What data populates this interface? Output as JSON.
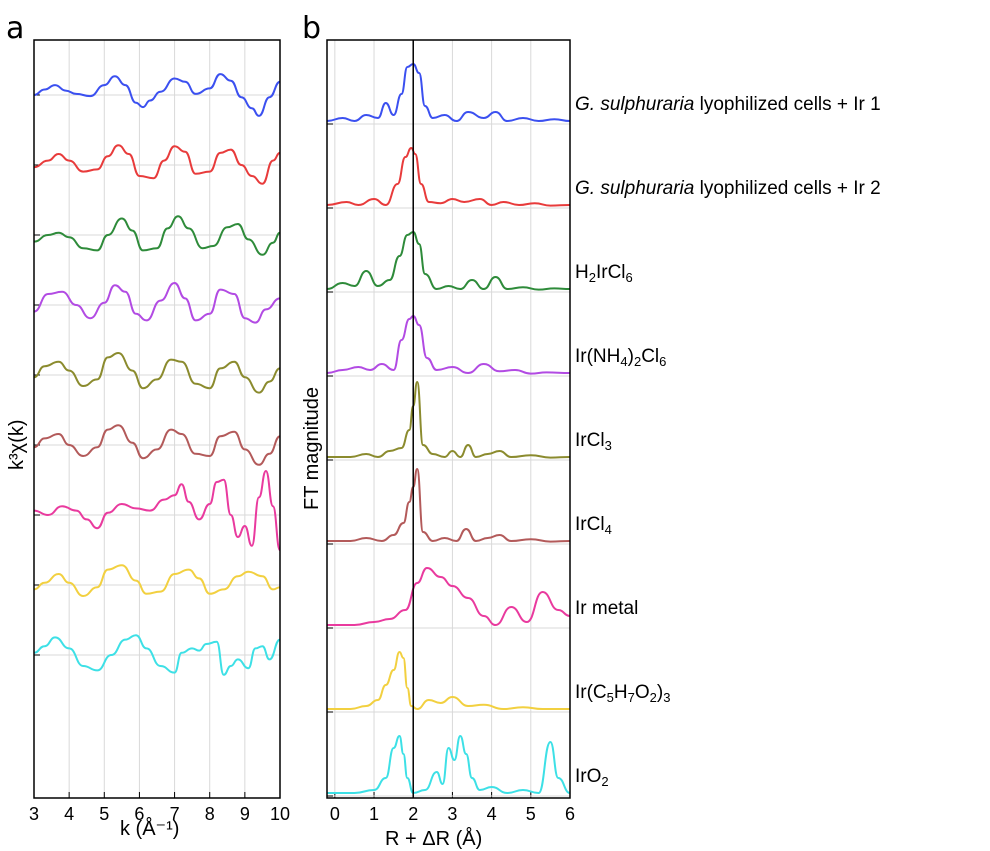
{
  "figure": {
    "panel_a_letter": "a",
    "panel_b_letter": "b",
    "panel_a_ylabel": "k³χ(k)",
    "panel_b_ylabel": "FT magnitude"
  },
  "chart_data": [
    {
      "type": "line",
      "panel": "a",
      "xlabel": "k  (Å⁻¹)",
      "ylabel": "k³χ(k)",
      "xlim": [
        3,
        10
      ],
      "xticks": [
        "3",
        "4",
        "5",
        "6",
        "7",
        "8",
        "9",
        "10"
      ],
      "grid": true,
      "stacked_offset": true,
      "series": [
        {
          "color": "#3b50f0",
          "x": [
            3.0,
            3.3,
            3.6,
            3.9,
            4.2,
            4.6,
            5.0,
            5.3,
            5.6,
            5.9,
            6.1,
            6.3,
            6.6,
            7.0,
            7.3,
            7.6,
            8.0,
            8.3,
            8.6,
            8.9,
            9.2,
            9.4,
            9.7,
            10.0
          ],
          "y": [
            0.0,
            0.25,
            0.45,
            0.2,
            0.05,
            -0.05,
            0.45,
            0.85,
            0.45,
            -0.35,
            -0.55,
            -0.25,
            0.15,
            0.75,
            0.6,
            0.05,
            0.3,
            0.95,
            0.65,
            -0.1,
            -0.6,
            -0.95,
            -0.1,
            0.6
          ]
        },
        {
          "color": "#e83b3b",
          "x": [
            3.0,
            3.4,
            3.7,
            4.0,
            4.4,
            4.8,
            5.1,
            5.4,
            5.7,
            6.0,
            6.4,
            6.7,
            7.0,
            7.3,
            7.6,
            8.0,
            8.3,
            8.6,
            8.9,
            9.2,
            9.5,
            9.8,
            10.0
          ],
          "y": [
            -0.1,
            0.2,
            0.5,
            0.2,
            -0.3,
            -0.2,
            0.4,
            0.9,
            0.5,
            -0.5,
            -0.6,
            0.2,
            0.85,
            0.6,
            -0.4,
            -0.3,
            0.55,
            0.7,
            0.0,
            -0.5,
            -0.85,
            0.2,
            0.55
          ]
        },
        {
          "color": "#2e8b3a",
          "x": [
            3.0,
            3.4,
            3.7,
            4.0,
            4.4,
            4.8,
            5.1,
            5.5,
            5.8,
            6.1,
            6.5,
            6.8,
            7.1,
            7.4,
            7.8,
            8.1,
            8.5,
            8.8,
            9.1,
            9.5,
            9.8,
            10.0
          ],
          "y": [
            -0.3,
            0.0,
            0.1,
            -0.1,
            -0.6,
            -0.7,
            0.0,
            0.75,
            0.2,
            -0.7,
            -0.6,
            0.3,
            0.85,
            0.3,
            -0.6,
            -0.5,
            0.35,
            0.5,
            -0.2,
            -0.9,
            -0.35,
            0.1
          ]
        },
        {
          "color": "#b24be3",
          "x": [
            3.0,
            3.4,
            3.8,
            4.2,
            4.6,
            5.0,
            5.3,
            5.6,
            5.9,
            6.2,
            6.6,
            7.0,
            7.3,
            7.6,
            8.0,
            8.3,
            8.7,
            9.0,
            9.3,
            9.6,
            10.0
          ],
          "y": [
            -0.3,
            0.5,
            0.6,
            0.0,
            -0.6,
            0.1,
            0.9,
            0.6,
            -0.4,
            -0.7,
            0.2,
            1.0,
            0.3,
            -0.7,
            -0.4,
            0.7,
            0.5,
            -0.6,
            -0.8,
            -0.2,
            0.3
          ]
        },
        {
          "color": "#8b8b2e",
          "x": [
            3.0,
            3.3,
            3.7,
            4.0,
            4.4,
            4.8,
            5.1,
            5.4,
            5.8,
            6.1,
            6.5,
            6.9,
            7.2,
            7.6,
            8.0,
            8.3,
            8.7,
            9.0,
            9.4,
            9.7,
            10.0
          ],
          "y": [
            -0.1,
            0.4,
            0.6,
            0.2,
            -0.5,
            -0.2,
            0.8,
            1.0,
            0.2,
            -0.6,
            -0.2,
            0.7,
            0.6,
            -0.4,
            -0.6,
            0.3,
            0.6,
            -0.1,
            -0.8,
            -0.3,
            0.3
          ]
        },
        {
          "color": "#b35a5a",
          "x": [
            3.0,
            3.3,
            3.7,
            4.0,
            4.4,
            4.8,
            5.1,
            5.4,
            5.8,
            6.1,
            6.5,
            6.9,
            7.2,
            7.6,
            8.0,
            8.3,
            8.7,
            9.0,
            9.4,
            9.7,
            10.0
          ],
          "y": [
            -0.1,
            0.3,
            0.5,
            0.0,
            -0.5,
            -0.1,
            0.7,
            0.9,
            0.1,
            -0.6,
            -0.2,
            0.7,
            0.5,
            -0.4,
            -0.5,
            0.4,
            0.6,
            -0.2,
            -0.9,
            -0.4,
            0.4
          ]
        },
        {
          "color": "#e93a9e",
          "x": [
            3.0,
            3.4,
            3.8,
            4.2,
            4.5,
            4.8,
            5.1,
            5.5,
            5.9,
            6.3,
            6.7,
            7.0,
            7.2,
            7.4,
            7.7,
            8.0,
            8.2,
            8.4,
            8.6,
            8.8,
            9.0,
            9.2,
            9.4,
            9.6,
            9.8,
            10.0
          ],
          "y": [
            0.2,
            0.0,
            0.4,
            0.2,
            -0.2,
            -0.6,
            0.1,
            0.5,
            0.3,
            0.2,
            0.7,
            0.9,
            1.4,
            0.6,
            -0.2,
            0.5,
            1.5,
            1.6,
            0.0,
            -1.0,
            -0.5,
            -1.4,
            0.8,
            2.0,
            0.4,
            -1.6
          ]
        },
        {
          "color": "#f2d040",
          "x": [
            3.0,
            3.3,
            3.7,
            4.0,
            4.4,
            4.8,
            5.1,
            5.5,
            5.9,
            6.2,
            6.6,
            7.0,
            7.4,
            7.7,
            8.0,
            8.4,
            8.8,
            9.1,
            9.5,
            9.8,
            10.0
          ],
          "y": [
            -0.2,
            0.1,
            0.5,
            0.1,
            -0.5,
            -0.1,
            0.7,
            0.9,
            0.2,
            -0.4,
            -0.3,
            0.5,
            0.7,
            0.3,
            -0.4,
            -0.2,
            0.4,
            0.6,
            0.4,
            -0.2,
            -0.1
          ]
        },
        {
          "color": "#3de0e6",
          "x": [
            3.0,
            3.3,
            3.6,
            4.0,
            4.4,
            4.8,
            5.2,
            5.6,
            5.9,
            6.2,
            6.6,
            7.0,
            7.2,
            7.5,
            7.7,
            7.9,
            8.2,
            8.4,
            8.6,
            8.8,
            9.1,
            9.3,
            9.5,
            9.7,
            10.0
          ],
          "y": [
            0.1,
            0.4,
            0.8,
            0.3,
            -0.5,
            -0.7,
            0.0,
            0.7,
            0.9,
            0.3,
            -0.5,
            -0.8,
            0.1,
            0.3,
            0.2,
            0.5,
            0.6,
            -0.9,
            -0.5,
            -0.2,
            -0.6,
            0.3,
            0.4,
            -0.2,
            0.7
          ]
        }
      ]
    },
    {
      "type": "line",
      "panel": "b",
      "xlabel": "R + ΔR (Å)",
      "ylabel": "FT magnitude",
      "xlim": [
        -0.2,
        6
      ],
      "xticks": [
        "0",
        "1",
        "2",
        "3",
        "4",
        "5",
        "6"
      ],
      "grid": true,
      "stacked_offset": true,
      "vertical_line_at": 2.0,
      "series": [
        {
          "color": "#3b50f0",
          "legend": [
            "",
            "G. sulphuraria",
            " lyophilized cells + Ir 1"
          ],
          "x": [
            -0.2,
            0.2,
            0.5,
            0.8,
            1.1,
            1.3,
            1.5,
            1.7,
            1.85,
            2.0,
            2.15,
            2.3,
            2.5,
            2.8,
            3.1,
            3.4,
            3.8,
            4.1,
            4.4,
            4.8,
            5.2,
            5.6,
            6.0
          ],
          "y": [
            0.05,
            0.1,
            0.05,
            0.15,
            0.1,
            0.35,
            0.15,
            0.5,
            0.95,
            1.0,
            0.85,
            0.3,
            0.1,
            0.15,
            0.05,
            0.2,
            0.1,
            0.2,
            0.05,
            0.1,
            0.05,
            0.08,
            0.05
          ]
        },
        {
          "color": "#e83b3b",
          "legend": [
            "",
            "G. sulphuraria",
            " lyophilized cells + Ir 2"
          ],
          "x": [
            -0.2,
            0.3,
            0.6,
            1.0,
            1.3,
            1.6,
            1.8,
            1.95,
            2.05,
            2.2,
            2.4,
            2.7,
            3.0,
            3.3,
            3.7,
            4.0,
            4.3,
            4.7,
            5.1,
            5.5,
            6.0
          ],
          "y": [
            0.05,
            0.1,
            0.05,
            0.15,
            0.05,
            0.4,
            0.85,
            1.0,
            0.9,
            0.4,
            0.1,
            0.08,
            0.15,
            0.1,
            0.15,
            0.05,
            0.1,
            0.05,
            0.08,
            0.04,
            0.05
          ]
        },
        {
          "color": "#2e8b3a",
          "legend": [
            "",
            "H",
            "2",
            "IrCl",
            "6",
            ""
          ],
          "x": [
            -0.2,
            0.2,
            0.5,
            0.8,
            1.1,
            1.4,
            1.65,
            1.85,
            2.0,
            2.15,
            2.3,
            2.6,
            2.9,
            3.2,
            3.5,
            3.8,
            4.1,
            4.4,
            4.8,
            5.2,
            5.6,
            6.0
          ],
          "y": [
            0.05,
            0.15,
            0.1,
            0.35,
            0.1,
            0.2,
            0.6,
            0.95,
            1.0,
            0.8,
            0.3,
            0.05,
            0.1,
            0.05,
            0.2,
            0.05,
            0.25,
            0.05,
            0.08,
            0.04,
            0.06,
            0.05
          ]
        },
        {
          "color": "#b24be3",
          "legend": [
            "",
            "Ir(NH",
            "4",
            ")",
            "2",
            "Cl",
            "6",
            ""
          ],
          "x": [
            -0.2,
            0.2,
            0.6,
            0.9,
            1.2,
            1.5,
            1.7,
            1.9,
            2.0,
            2.15,
            2.35,
            2.6,
            3.0,
            3.4,
            3.8,
            4.2,
            4.6,
            5.0,
            5.4,
            6.0
          ],
          "y": [
            0.05,
            0.1,
            0.15,
            0.1,
            0.2,
            0.1,
            0.6,
            0.95,
            1.0,
            0.85,
            0.3,
            0.1,
            0.15,
            0.05,
            0.2,
            0.08,
            0.1,
            0.04,
            0.06,
            0.05
          ]
        },
        {
          "color": "#8b8b2e",
          "legend": [
            "",
            "IrCl",
            "3",
            ""
          ],
          "x": [
            -0.2,
            0.4,
            0.8,
            1.1,
            1.4,
            1.7,
            1.9,
            2.0,
            2.1,
            2.25,
            2.5,
            2.8,
            3.0,
            3.2,
            3.4,
            3.6,
            3.9,
            4.2,
            4.5,
            5.0,
            5.5,
            6.0
          ],
          "y": [
            0.05,
            0.05,
            0.1,
            0.05,
            0.15,
            0.2,
            0.5,
            0.9,
            1.3,
            0.25,
            0.1,
            0.05,
            0.15,
            0.05,
            0.25,
            0.05,
            0.1,
            0.15,
            0.05,
            0.08,
            0.04,
            0.05
          ]
        },
        {
          "color": "#b35a5a",
          "legend": [
            "",
            "IrCl",
            "4",
            ""
          ],
          "x": [
            -0.2,
            0.4,
            0.8,
            1.2,
            1.5,
            1.75,
            1.9,
            2.0,
            2.1,
            2.25,
            2.5,
            2.8,
            3.1,
            3.35,
            3.6,
            3.9,
            4.2,
            4.5,
            5.0,
            5.5,
            6.0
          ],
          "y": [
            0.05,
            0.05,
            0.1,
            0.05,
            0.15,
            0.35,
            0.7,
            0.95,
            1.25,
            0.2,
            0.05,
            0.1,
            0.05,
            0.25,
            0.05,
            0.1,
            0.15,
            0.05,
            0.08,
            0.04,
            0.05
          ]
        },
        {
          "color": "#e93a9e",
          "legend": [
            "",
            "Ir metal",
            ""
          ],
          "x": [
            -0.2,
            0.5,
            1.0,
            1.4,
            1.8,
            2.1,
            2.35,
            2.7,
            3.0,
            3.4,
            3.8,
            4.1,
            4.5,
            4.9,
            5.3,
            5.7,
            6.0
          ],
          "y": [
            0.05,
            0.05,
            0.1,
            0.15,
            0.3,
            0.75,
            1.0,
            0.85,
            0.7,
            0.5,
            0.2,
            0.05,
            0.35,
            0.1,
            0.6,
            0.3,
            0.2
          ]
        },
        {
          "color": "#f2d040",
          "legend": [
            "",
            "Ir(C",
            "5",
            "H",
            "7",
            "O",
            "2",
            ")",
            "3",
            ""
          ],
          "x": [
            -0.2,
            0.4,
            0.8,
            1.1,
            1.3,
            1.5,
            1.65,
            1.75,
            1.85,
            1.95,
            2.1,
            2.4,
            2.7,
            3.0,
            3.4,
            3.8,
            4.3,
            4.8,
            5.3,
            6.0
          ],
          "y": [
            0.05,
            0.05,
            0.1,
            0.2,
            0.45,
            0.7,
            1.0,
            0.9,
            0.4,
            0.1,
            0.05,
            0.2,
            0.15,
            0.25,
            0.1,
            0.12,
            0.05,
            0.08,
            0.05,
            0.05
          ]
        },
        {
          "color": "#3de0e6",
          "legend": [
            "",
            "IrO",
            "2",
            ""
          ],
          "x": [
            -0.2,
            0.5,
            1.0,
            1.3,
            1.5,
            1.65,
            1.75,
            1.85,
            2.0,
            2.3,
            2.6,
            2.75,
            2.9,
            3.05,
            3.2,
            3.35,
            3.5,
            3.7,
            4.0,
            4.4,
            4.8,
            5.2,
            5.5,
            5.7,
            6.0
          ],
          "y": [
            0.05,
            0.05,
            0.1,
            0.3,
            0.8,
            1.0,
            0.7,
            0.3,
            0.05,
            0.1,
            0.4,
            0.2,
            0.8,
            0.6,
            1.0,
            0.7,
            0.3,
            0.1,
            0.15,
            0.05,
            0.1,
            0.05,
            0.9,
            0.3,
            0.05
          ]
        }
      ]
    }
  ]
}
